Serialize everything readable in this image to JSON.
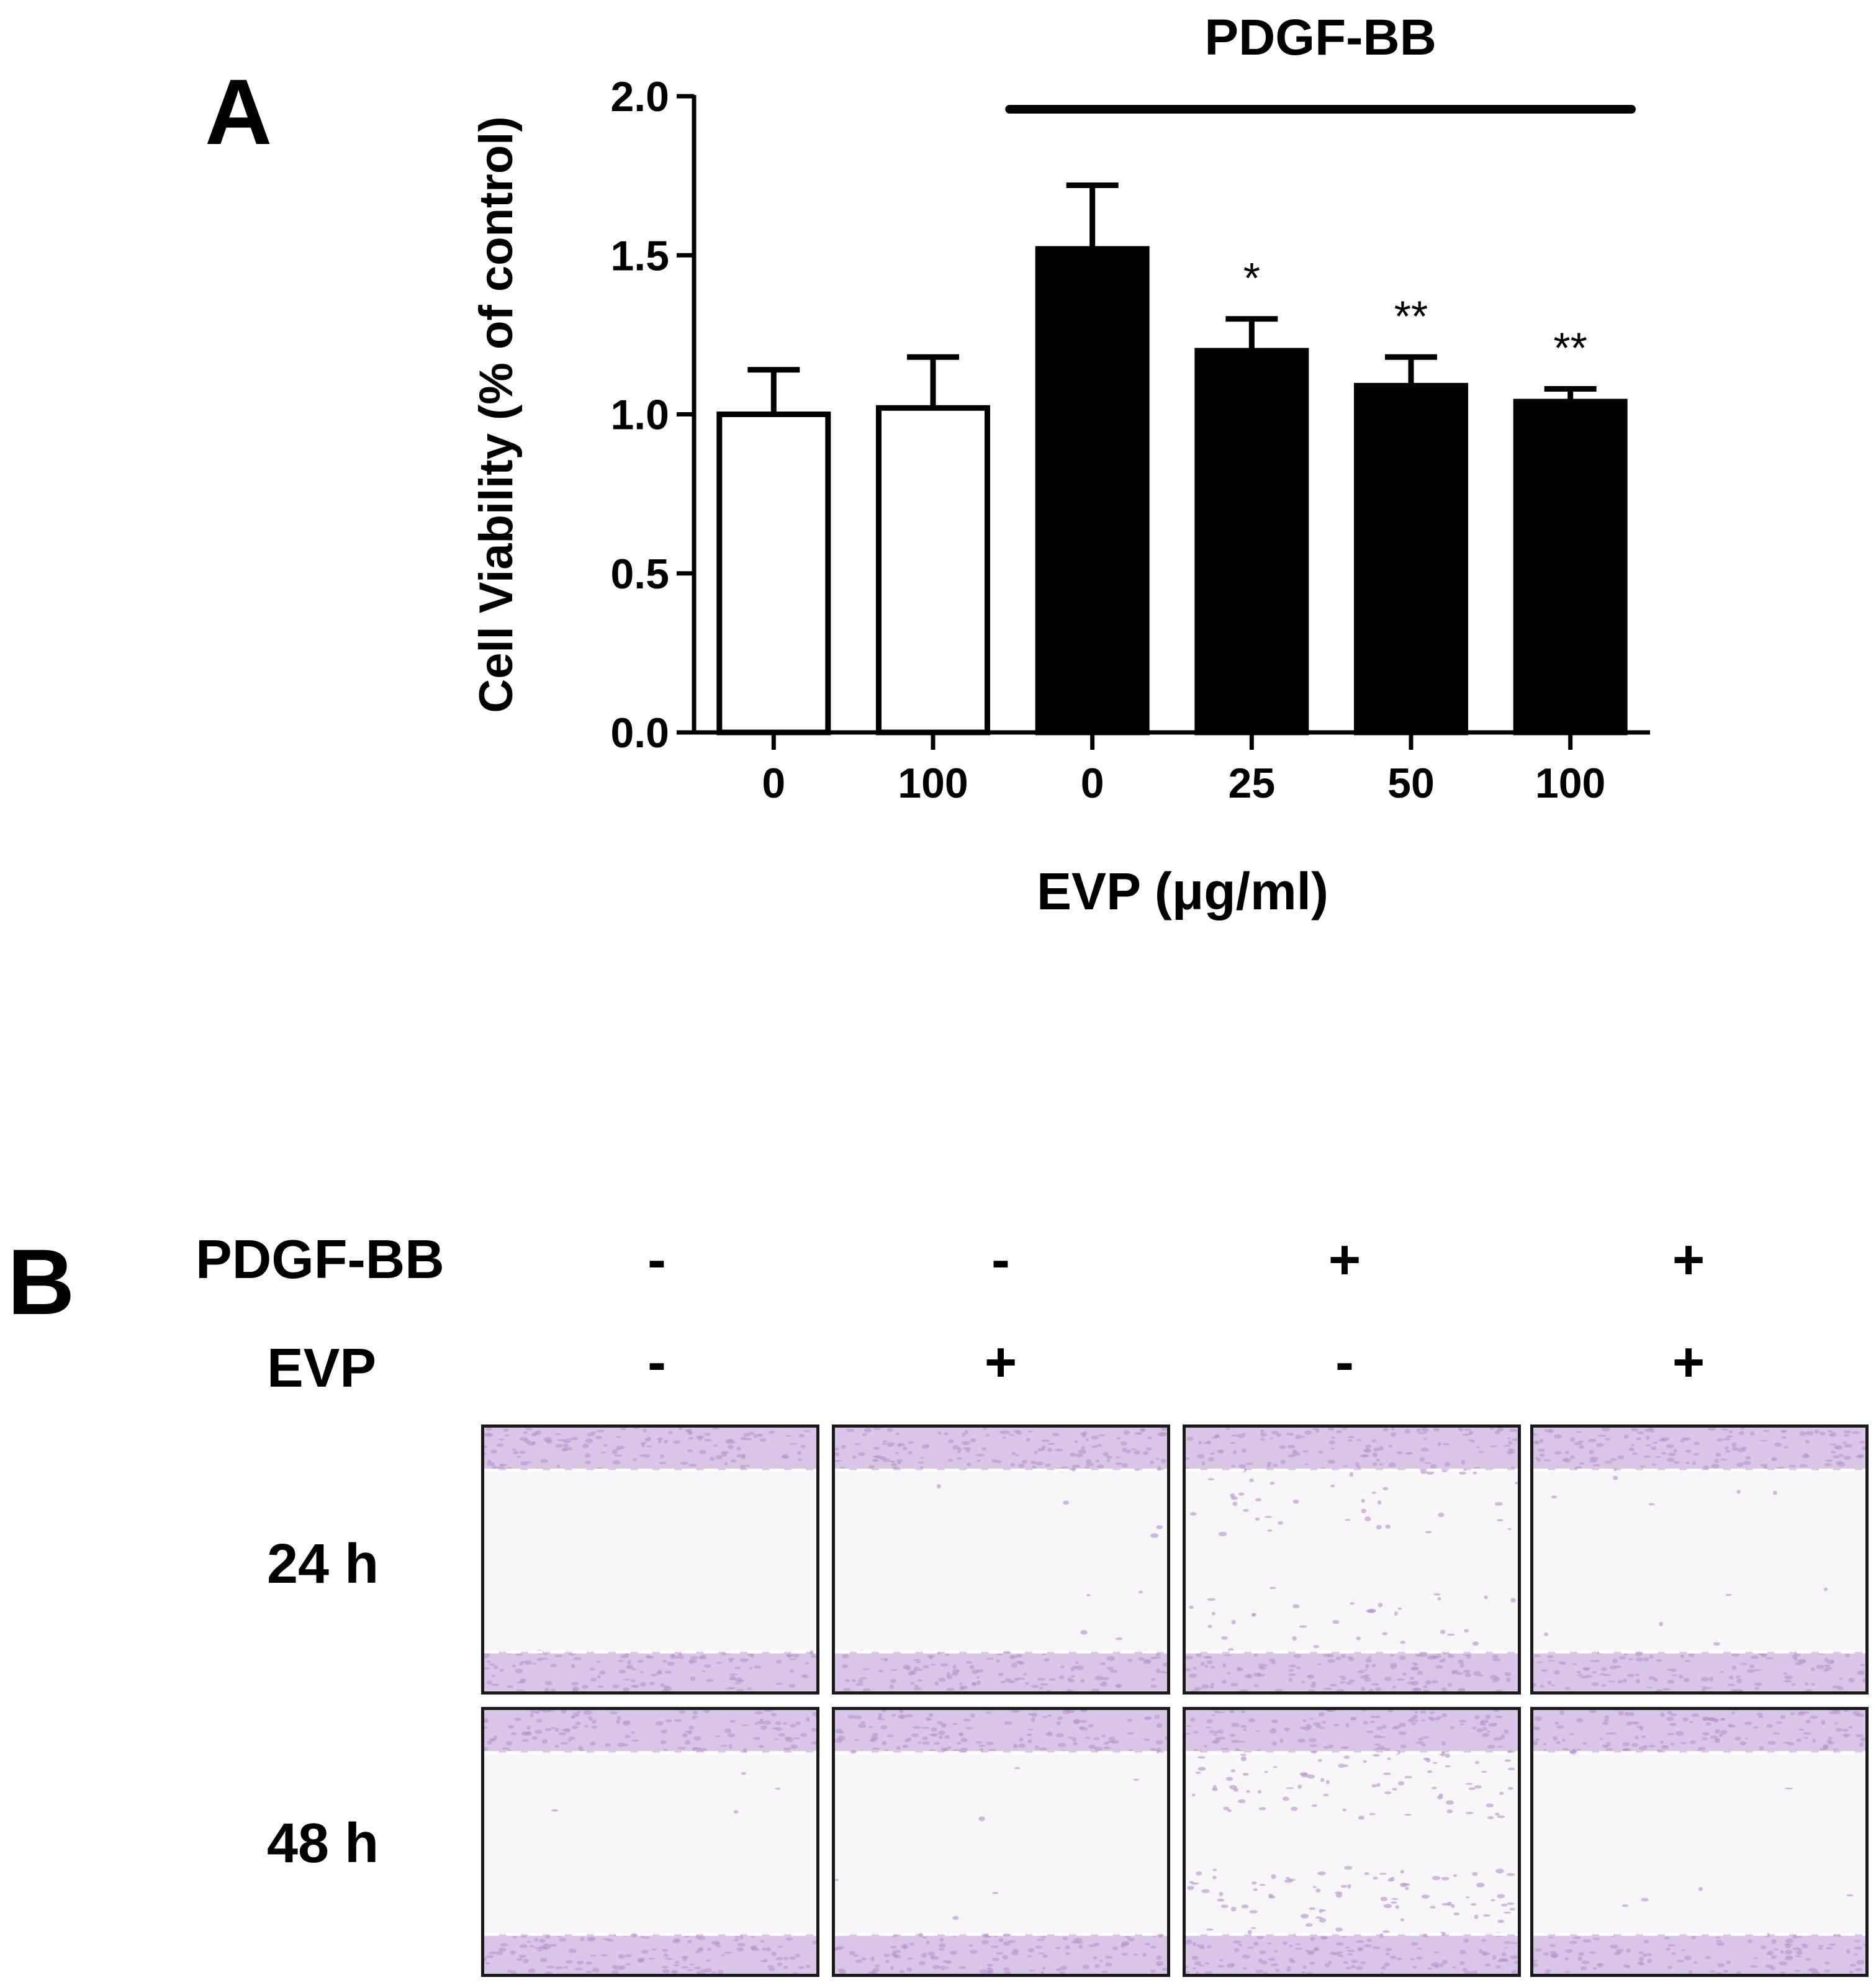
{
  "panel_a": {
    "label": "A"
  },
  "panel_b": {
    "label": "B",
    "row_labels": {
      "pdgf": "PDGF-BB",
      "evp": "EVP"
    },
    "pdgf_signs": [
      "-",
      "-",
      "+",
      "+"
    ],
    "evp_signs": [
      "-",
      "+",
      "-",
      "+"
    ],
    "times": [
      "24 h",
      "48 h"
    ]
  },
  "colors": {
    "control_bar": "#ffffff",
    "pdgf_bar": "#000000",
    "axis": "#000000",
    "micrograph_stain": "#b48fc9"
  },
  "chart_data": {
    "type": "bar",
    "categories": [
      "0",
      "100",
      "0",
      "25",
      "50",
      "100"
    ],
    "values": [
      1.0,
      1.02,
      1.52,
      1.2,
      1.09,
      1.04
    ],
    "errors": [
      0.14,
      0.16,
      0.2,
      0.1,
      0.09,
      0.04
    ],
    "group_fill": [
      "white",
      "white",
      "black",
      "black",
      "black",
      "black"
    ],
    "significance": [
      "",
      "",
      "",
      "*",
      "**",
      "**"
    ],
    "bracket_label": "PDGF-BB",
    "bracket_span": [
      2,
      5
    ],
    "xlabel": "EVP (μg/ml)",
    "ylabel": "Cell Viability (% of control)",
    "ylim": [
      0,
      2.0
    ],
    "yticks": [
      "0.0",
      "0.5",
      "1.0",
      "1.5",
      "2.0"
    ]
  }
}
